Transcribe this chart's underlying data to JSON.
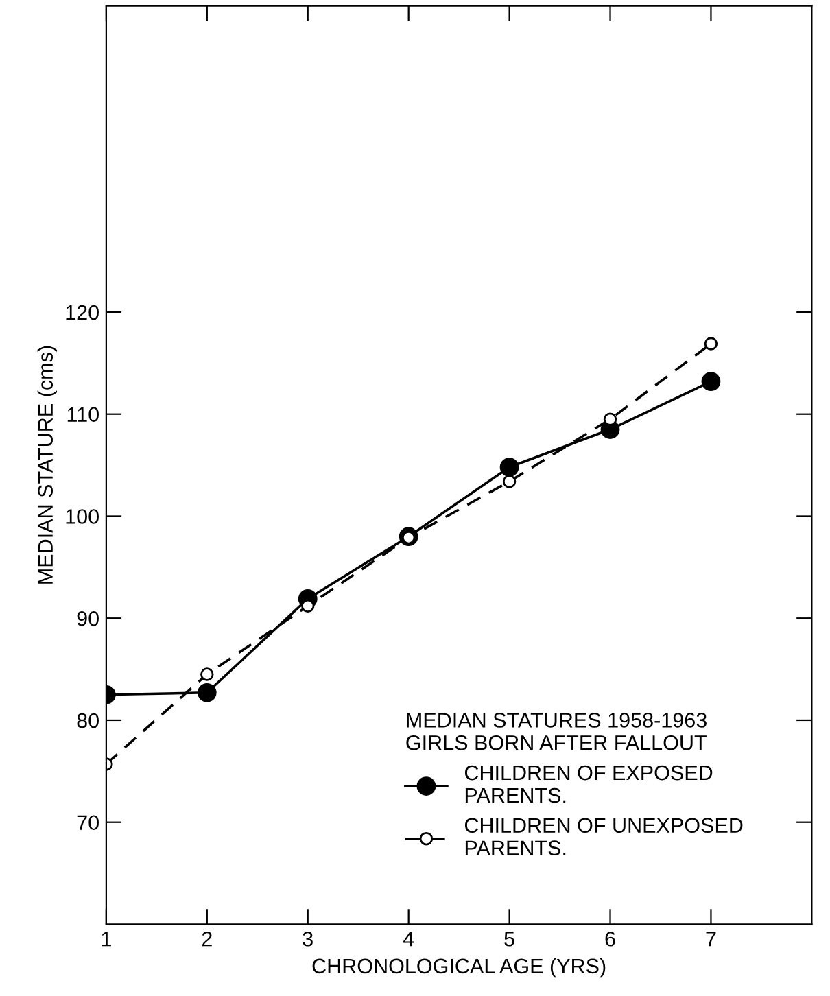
{
  "chart_data": {
    "type": "line",
    "xlabel": "CHRONOLOGICAL AGE (YRS)",
    "ylabel": "MEDIAN STATURE (cms)",
    "legend_title": "MEDIAN STATURES 1958-1963\nGIRLS BORN AFTER FALLOUT",
    "x": [
      1,
      2,
      3,
      4,
      5,
      6,
      7
    ],
    "series": [
      {
        "name": "CHILDREN OF EXPOSED\nPARENTS.",
        "color": "#000000",
        "marker": "circle",
        "line_style": "solid",
        "values": [
          82.5,
          82.7,
          91.9,
          98.0,
          104.8,
          108.5,
          113.2
        ]
      },
      {
        "name": "CHILDREN OF UNEXPOSED\nPARENTS.",
        "color": "#000000",
        "marker": "circle",
        "line_style": "dashed",
        "values": [
          75.7,
          84.5,
          91.2,
          97.9,
          103.4,
          109.5,
          116.9
        ]
      }
    ],
    "xlim": [
      1,
      8
    ],
    "xticks": [
      1,
      2,
      3,
      4,
      5,
      6,
      7
    ],
    "ylim": [
      60,
      150
    ],
    "yticks": [
      70,
      80,
      90,
      100,
      110,
      120
    ],
    "grid": false,
    "legend": "bottom right"
  }
}
